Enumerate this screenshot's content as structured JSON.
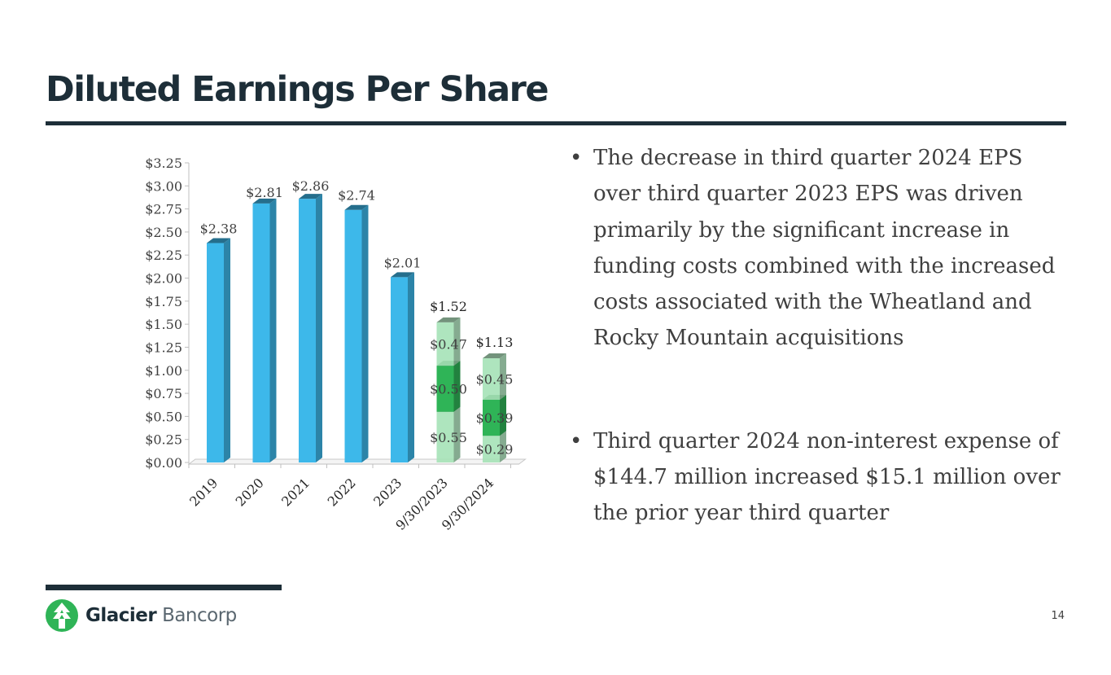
{
  "page": {
    "title": "Diluted Earnings Per Share",
    "page_number": "14"
  },
  "bullets": [
    "The decrease in third quarter 2024 EPS over third quarter 2023 EPS was driven primarily by the significant increase in funding costs combined with the increased costs associated with the Wheatland and Rocky Mountain acquisitions",
    "Third quarter 2024 non-interest expense of $144.7 million increased $15.1 million over the prior year third quarter"
  ],
  "logo": {
    "bold_text": "Glacier",
    "light_text": "Bancorp"
  },
  "colors": {
    "title": "#1d2e38",
    "bar_blue": "#3db8ea",
    "seg_light": "#a6e3b7",
    "seg_dark": "#2fb457"
  },
  "chart_data": {
    "type": "bar",
    "title": "",
    "xlabel": "",
    "ylabel": "",
    "ylim": [
      0,
      3.25
    ],
    "y_ticks": [
      "$0.00",
      "$0.25",
      "$0.50",
      "$0.75",
      "$1.00",
      "$1.25",
      "$1.50",
      "$1.75",
      "$2.00",
      "$2.25",
      "$2.50",
      "$2.75",
      "$3.00",
      "$3.25"
    ],
    "categories": [
      "2019",
      "2020",
      "2021",
      "2022",
      "2023",
      "9/30/2023",
      "9/30/2024"
    ],
    "values": [
      2.38,
      2.81,
      2.86,
      2.74,
      2.01,
      1.52,
      1.13
    ],
    "value_labels": [
      "$2.38",
      "$2.81",
      "$2.86",
      "$2.74",
      "$2.01",
      "$1.52",
      "$1.13"
    ],
    "stacked_segments": {
      "9/30/2023": [
        {
          "value": 0.55,
          "label": "$0.55"
        },
        {
          "value": 0.5,
          "label": "$0.50"
        },
        {
          "value": 0.47,
          "label": "$0.47"
        }
      ],
      "9/30/2024": [
        {
          "value": 0.29,
          "label": "$0.29"
        },
        {
          "value": 0.39,
          "label": "$0.39"
        },
        {
          "value": 0.45,
          "label": "$0.45"
        }
      ]
    }
  }
}
